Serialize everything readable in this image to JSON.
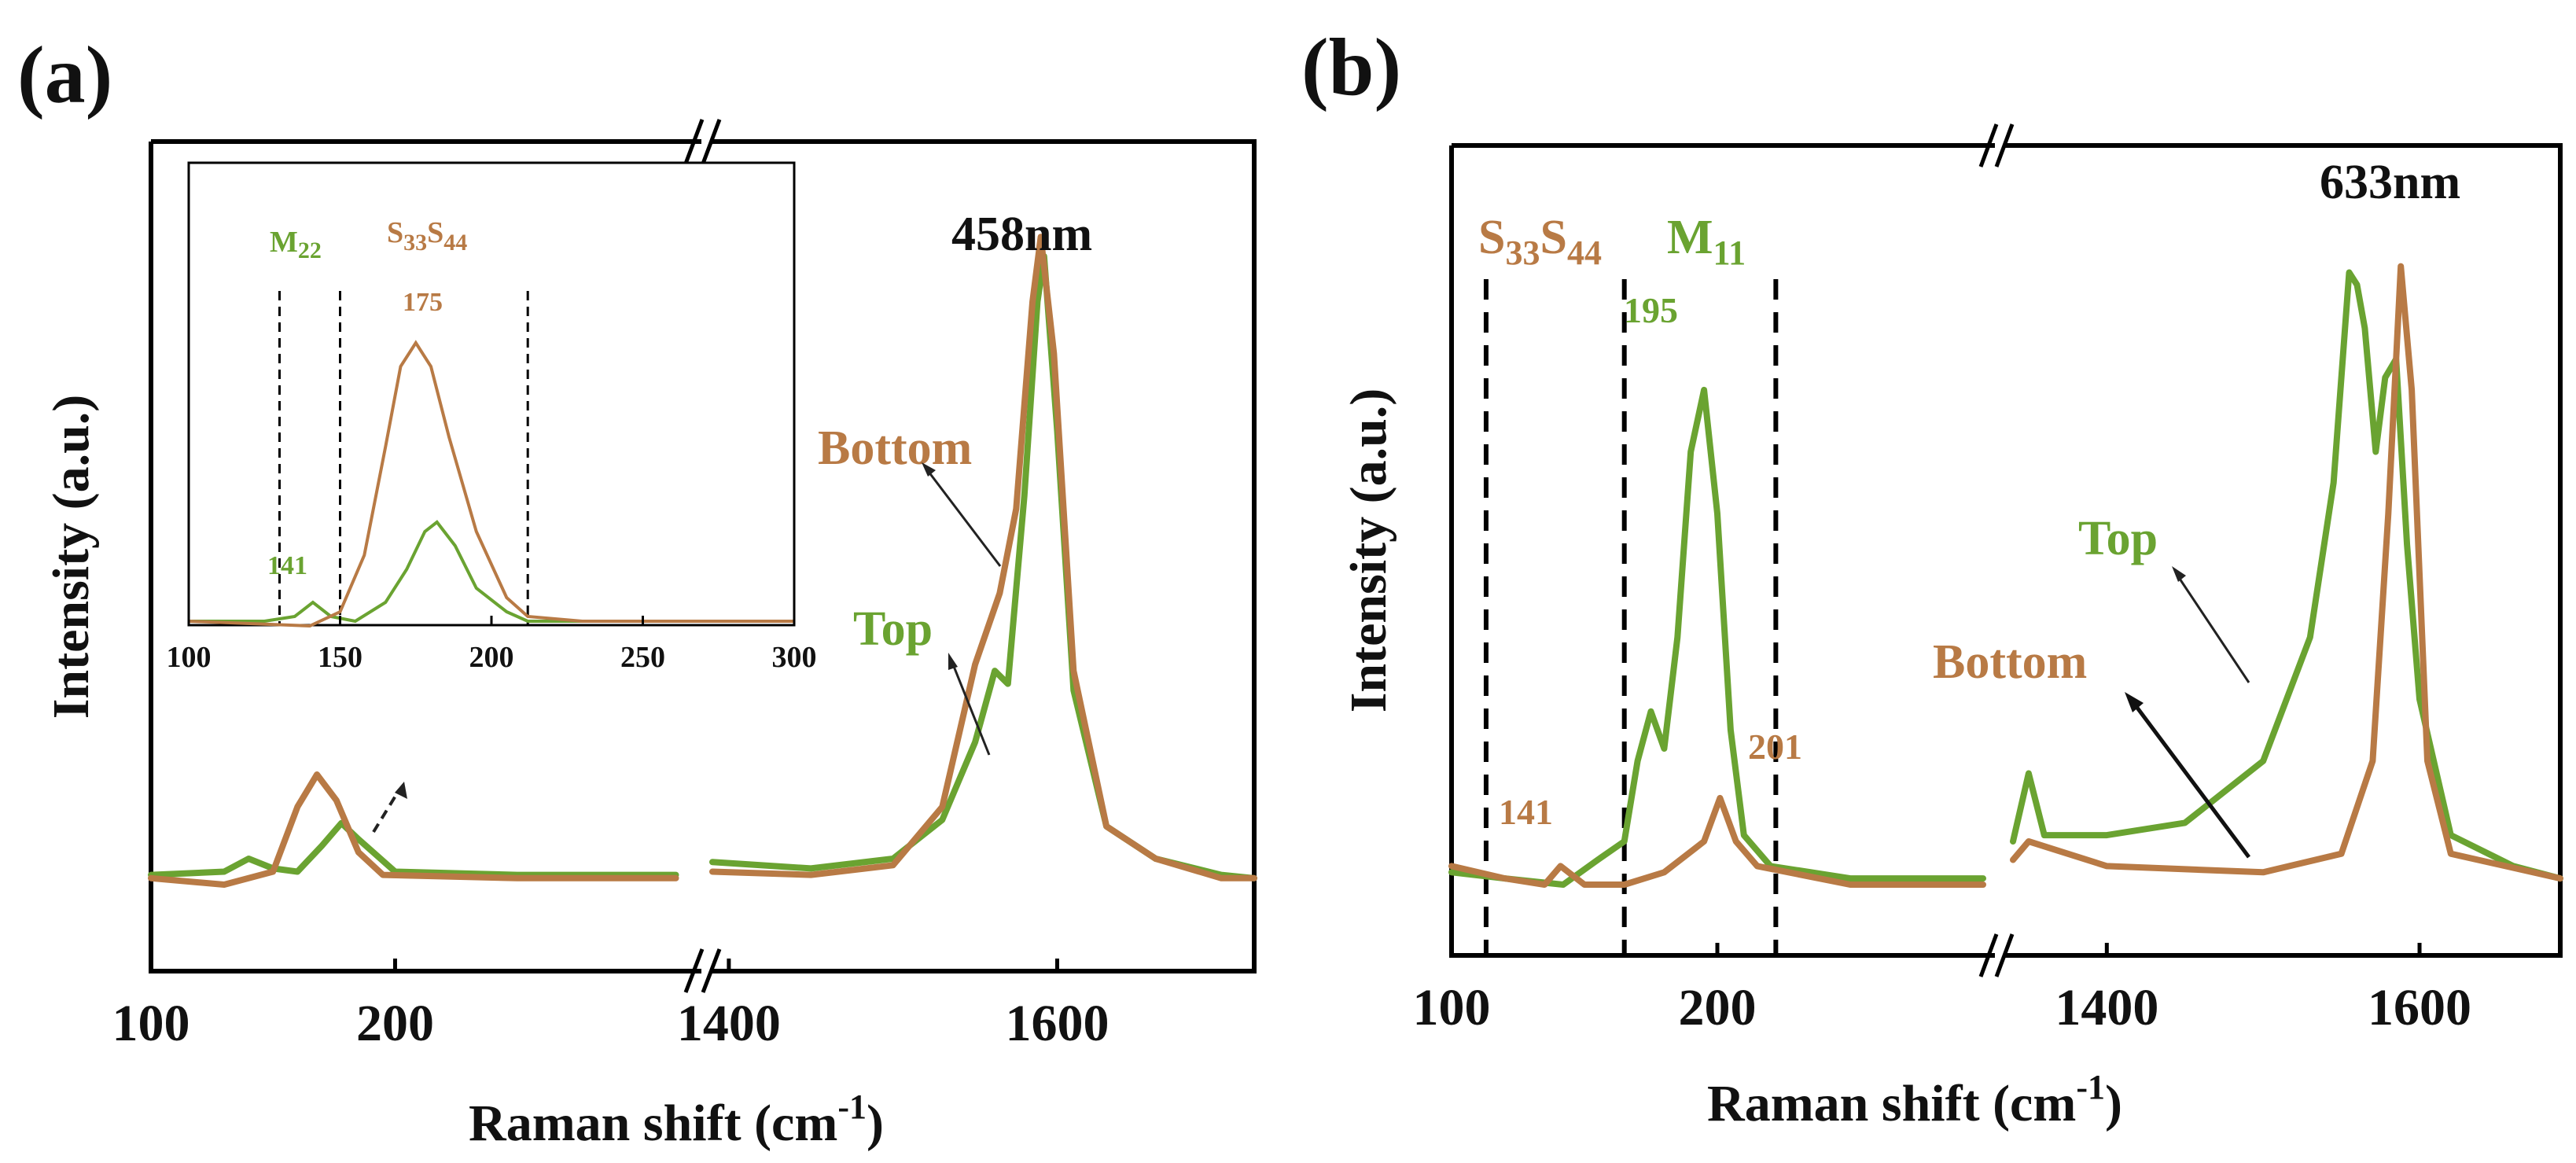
{
  "colors": {
    "top": "#6aa331",
    "bottom": "#b87a45",
    "axis": "#000000",
    "text": "#111111"
  },
  "chart_data": [
    {
      "type": "line",
      "panel_label": "(a)",
      "wavelength": "458nm",
      "xlabel": "Raman shift (cm",
      "xlabel_sup": "-1",
      "xlabel_close": ")",
      "ylabel": "Intensity (a.u.)",
      "axis_break": true,
      "segments": [
        {
          "xlim": [
            100,
            320
          ],
          "ticks": [
            "100",
            "200"
          ],
          "tick_values": [
            100,
            200
          ]
        },
        {
          "xlim": [
            1390,
            1720
          ],
          "ticks": [
            "1400",
            "1600"
          ],
          "tick_values": [
            1400,
            1600
          ]
        }
      ],
      "ylim": [
        0,
        1.05
      ],
      "series": [
        {
          "name": "Top",
          "color_key": "top",
          "low": [
            [
              100,
              0.015
            ],
            [
              130,
              0.02
            ],
            [
              140,
              0.04
            ],
            [
              150,
              0.025
            ],
            [
              160,
              0.02
            ],
            [
              170,
              0.06
            ],
            [
              178,
              0.095
            ],
            [
              185,
              0.07
            ],
            [
              200,
              0.02
            ],
            [
              250,
              0.015
            ],
            [
              300,
              0.015
            ],
            [
              315,
              0.015
            ]
          ],
          "high": [
            [
              1390,
              0.035
            ],
            [
              1450,
              0.025
            ],
            [
              1500,
              0.04
            ],
            [
              1530,
              0.1
            ],
            [
              1550,
              0.22
            ],
            [
              1562,
              0.33
            ],
            [
              1570,
              0.31
            ],
            [
              1580,
              0.6
            ],
            [
              1588,
              0.9
            ],
            [
              1592,
              0.97
            ],
            [
              1600,
              0.7
            ],
            [
              1610,
              0.3
            ],
            [
              1630,
              0.09
            ],
            [
              1660,
              0.04
            ],
            [
              1700,
              0.015
            ],
            [
              1720,
              0.01
            ]
          ]
        },
        {
          "name": "Bottom",
          "color_key": "bottom",
          "low": [
            [
              100,
              0.01
            ],
            [
              130,
              0.0
            ],
            [
              150,
              0.02
            ],
            [
              160,
              0.12
            ],
            [
              168,
              0.17
            ],
            [
              176,
              0.13
            ],
            [
              185,
              0.05
            ],
            [
              195,
              0.015
            ],
            [
              250,
              0.01
            ],
            [
              315,
              0.01
            ]
          ],
          "high": [
            [
              1390,
              0.02
            ],
            [
              1450,
              0.015
            ],
            [
              1500,
              0.03
            ],
            [
              1530,
              0.12
            ],
            [
              1550,
              0.34
            ],
            [
              1565,
              0.45
            ],
            [
              1575,
              0.58
            ],
            [
              1585,
              0.9
            ],
            [
              1590,
              1.0
            ],
            [
              1598,
              0.82
            ],
            [
              1610,
              0.33
            ],
            [
              1630,
              0.09
            ],
            [
              1660,
              0.04
            ],
            [
              1700,
              0.01
            ],
            [
              1720,
              0.01
            ]
          ]
        }
      ],
      "annotations": {
        "top_label": "Top",
        "bottom_label": "Bottom"
      },
      "inset": {
        "xlim": [
          100,
          300
        ],
        "ylim": [
          0,
          1
        ],
        "ticks": [
          "100",
          "150",
          "200",
          "250",
          "300"
        ],
        "tick_values": [
          100,
          150,
          200,
          250,
          300
        ],
        "vlines": [
          130,
          150,
          212
        ],
        "label_m": "M",
        "label_m_sub": "22",
        "label_s1": "S",
        "label_s1_sub": "33",
        "label_s2": "S",
        "label_s2_sub": "44",
        "peak_175": "175",
        "peak_141": "141",
        "top": [
          [
            100,
            0.01
          ],
          [
            125,
            0.01
          ],
          [
            135,
            0.02
          ],
          [
            141,
            0.05
          ],
          [
            147,
            0.02
          ],
          [
            155,
            0.01
          ],
          [
            165,
            0.05
          ],
          [
            172,
            0.12
          ],
          [
            178,
            0.2
          ],
          [
            182,
            0.22
          ],
          [
            188,
            0.17
          ],
          [
            195,
            0.08
          ],
          [
            205,
            0.03
          ],
          [
            212,
            0.01
          ],
          [
            250,
            0.01
          ],
          [
            300,
            0.01
          ]
        ],
        "bottom": [
          [
            100,
            0.01
          ],
          [
            140,
            0.0
          ],
          [
            150,
            0.03
          ],
          [
            158,
            0.15
          ],
          [
            165,
            0.38
          ],
          [
            170,
            0.55
          ],
          [
            175,
            0.6
          ],
          [
            180,
            0.55
          ],
          [
            186,
            0.4
          ],
          [
            195,
            0.2
          ],
          [
            205,
            0.06
          ],
          [
            212,
            0.02
          ],
          [
            230,
            0.01
          ],
          [
            300,
            0.01
          ]
        ]
      }
    },
    {
      "type": "line",
      "panel_label": "(b)",
      "wavelength": "633nm",
      "xlabel": "Raman shift (cm",
      "xlabel_sup": "-1",
      "xlabel_close": ")",
      "ylabel": "Intensity (a.u.)",
      "axis_break": true,
      "segments": [
        {
          "xlim": [
            100,
            300
          ],
          "ticks": [
            "100",
            "200"
          ],
          "tick_values": [
            100,
            200
          ]
        },
        {
          "xlim": [
            1340,
            1690
          ],
          "ticks": [
            "1400",
            "1600"
          ],
          "tick_values": [
            1400,
            1600
          ]
        }
      ],
      "ylim": [
        0,
        1.1
      ],
      "vlines": [
        113,
        165,
        222
      ],
      "series": [
        {
          "name": "Top",
          "color_key": "top",
          "low": [
            [
              100,
              0.02
            ],
            [
              120,
              0.01
            ],
            [
              142,
              0.0
            ],
            [
              155,
              0.04
            ],
            [
              165,
              0.07
            ],
            [
              170,
              0.2
            ],
            [
              175,
              0.28
            ],
            [
              180,
              0.22
            ],
            [
              185,
              0.4
            ],
            [
              190,
              0.7
            ],
            [
              195,
              0.8
            ],
            [
              200,
              0.6
            ],
            [
              205,
              0.25
            ],
            [
              210,
              0.08
            ],
            [
              220,
              0.03
            ],
            [
              250,
              0.01
            ],
            [
              300,
              0.01
            ]
          ],
          "high": [
            [
              1340,
              0.07
            ],
            [
              1350,
              0.18
            ],
            [
              1360,
              0.08
            ],
            [
              1400,
              0.08
            ],
            [
              1450,
              0.1
            ],
            [
              1500,
              0.2
            ],
            [
              1530,
              0.4
            ],
            [
              1545,
              0.65
            ],
            [
              1555,
              0.99
            ],
            [
              1560,
              0.97
            ],
            [
              1565,
              0.9
            ],
            [
              1572,
              0.7
            ],
            [
              1578,
              0.82
            ],
            [
              1585,
              0.85
            ],
            [
              1592,
              0.55
            ],
            [
              1600,
              0.3
            ],
            [
              1620,
              0.08
            ],
            [
              1660,
              0.03
            ],
            [
              1690,
              0.01
            ]
          ]
        },
        {
          "name": "Bottom",
          "color_key": "bottom",
          "low": [
            [
              100,
              0.03
            ],
            [
              120,
              0.01
            ],
            [
              135,
              0.0
            ],
            [
              141,
              0.03
            ],
            [
              150,
              0.0
            ],
            [
              165,
              0.0
            ],
            [
              180,
              0.02
            ],
            [
              195,
              0.07
            ],
            [
              201,
              0.14
            ],
            [
              207,
              0.07
            ],
            [
              215,
              0.03
            ],
            [
              250,
              0.0
            ],
            [
              300,
              0.0
            ]
          ],
          "high": [
            [
              1340,
              0.04
            ],
            [
              1350,
              0.07
            ],
            [
              1400,
              0.03
            ],
            [
              1500,
              0.02
            ],
            [
              1550,
              0.05
            ],
            [
              1570,
              0.2
            ],
            [
              1580,
              0.6
            ],
            [
              1588,
              1.0
            ],
            [
              1595,
              0.8
            ],
            [
              1605,
              0.2
            ],
            [
              1620,
              0.05
            ],
            [
              1690,
              0.01
            ]
          ]
        }
      ],
      "annotations": {
        "top_label": "Top",
        "bottom_label": "Bottom",
        "peak_195": "195",
        "peak_201": "201",
        "peak_141": "141",
        "s1": "S",
        "s1_sub": "33",
        "s2": "S",
        "s2_sub": "44",
        "m": "M",
        "m_sub": "11"
      }
    }
  ]
}
